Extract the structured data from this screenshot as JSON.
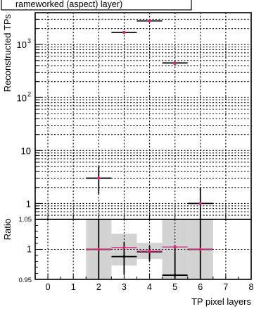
{
  "chart_data": [
    {
      "type": "scatter",
      "title": "",
      "legend_fragment": "rameworked (aspect) layer)",
      "xlabel": "",
      "ylabel": "Reconstructed TPs",
      "yscale": "log",
      "xlim": [
        -0.5,
        8
      ],
      "ylim": [
        0.5,
        4000
      ],
      "grid": true,
      "x_tick_labels": [],
      "y_tick_labels": [
        "1",
        "10",
        "10²",
        "10³"
      ],
      "series": [
        {
          "color": "#000000",
          "points": [
            {
              "x": 2,
              "y": 3.0,
              "xerr": 0.5,
              "yerr_low": 1.5,
              "yerr_high": 1.9
            },
            {
              "x": 3,
              "y": 1700,
              "xerr": 0.5
            },
            {
              "x": 4,
              "y": 2800,
              "xerr": 0.5
            },
            {
              "x": 5,
              "y": 450,
              "xerr": 0.5
            },
            {
              "x": 6,
              "y": 1.0,
              "xerr": 0.5,
              "yerr_low": 0.5,
              "yerr_high": 1.0
            }
          ]
        },
        {
          "color": "#e0207a",
          "points": [
            {
              "x": 2,
              "y": 3.0
            },
            {
              "x": 3,
              "y": 1700
            },
            {
              "x": 4,
              "y": 2800
            },
            {
              "x": 5,
              "y": 440
            },
            {
              "x": 6,
              "y": 1.0
            }
          ]
        }
      ]
    },
    {
      "type": "scatter",
      "title": "",
      "xlabel": "TP pixel layers",
      "ylabel": "Ratio",
      "xlim": [
        -0.5,
        8
      ],
      "ylim": [
        0.95,
        1.05
      ],
      "grid": true,
      "x_tick_labels": [
        "0",
        "1",
        "2",
        "3",
        "4",
        "5",
        "6",
        "7",
        "8"
      ],
      "y_tick_labels": [
        "0.95",
        "1",
        "1.05"
      ],
      "uncertainty_band_color": "#d3d3d3",
      "uncertainty_band": [
        {
          "x": 2,
          "low": 0.95,
          "high": 1.05
        },
        {
          "x": 3,
          "low": 0.973,
          "high": 1.026
        },
        {
          "x": 4,
          "low": 0.984,
          "high": 1.011
        },
        {
          "x": 5,
          "low": 0.95,
          "high": 1.05
        },
        {
          "x": 6,
          "low": 0.95,
          "high": 1.05
        }
      ],
      "series": [
        {
          "color": "#000000",
          "points": [
            {
              "x": 2,
              "y": 1.0,
              "xerr": 0.5,
              "yerr_low": 0.05,
              "yerr_high": 0.05
            },
            {
              "x": 3,
              "y": 0.988,
              "xerr": 0.5,
              "yerr_low": 0.03,
              "yerr_high": 0.024
            },
            {
              "x": 4,
              "y": 0.996,
              "xerr": 0.5,
              "yerr_low": 0.015,
              "yerr_high": 0.01
            },
            {
              "x": 5,
              "y": 0.957,
              "xerr": 0.5,
              "yerr_low": 0.007,
              "yerr_high": 0.05
            },
            {
              "x": 6,
              "y": 1.0,
              "xerr": 0.5,
              "yerr_low": 0.05,
              "yerr_high": 0.05
            }
          ]
        },
        {
          "color": "#e0207a",
          "points": [
            {
              "x": 2,
              "y": 1.0,
              "xerr": 0.5
            },
            {
              "x": 3,
              "y": 1.003,
              "xerr": 0.5
            },
            {
              "x": 4,
              "y": 0.997,
              "xerr": 0.5
            },
            {
              "x": 5,
              "y": 1.004,
              "xerr": 0.5
            },
            {
              "x": 6,
              "y": 1.0,
              "xerr": 0.5
            }
          ]
        }
      ]
    }
  ]
}
